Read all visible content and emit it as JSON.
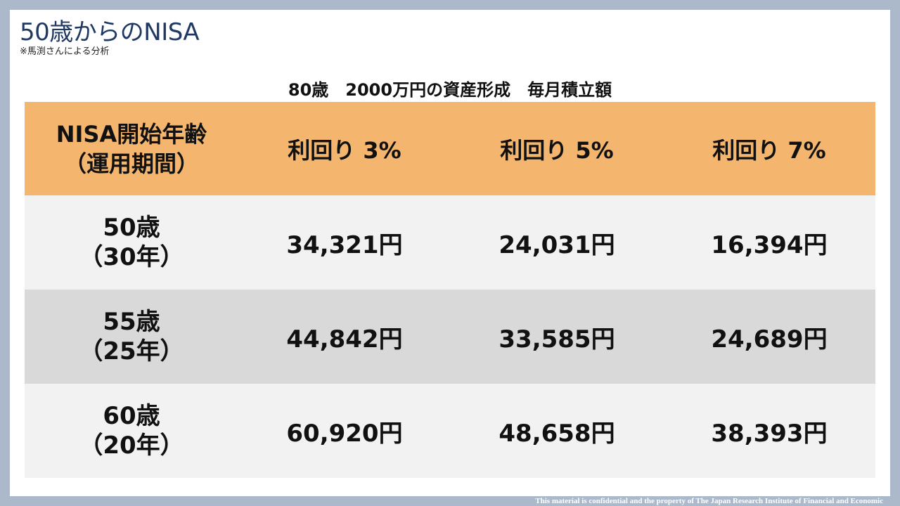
{
  "slide": {
    "title": "50歳からのNISA",
    "note": "※馬渕さんによる分析"
  },
  "table": {
    "caption": "80歳　2000万円の資産形成　毎月積立額",
    "header": {
      "age_line1": "NISA開始年齢",
      "age_line2": "（運用期間）",
      "columns": [
        "利回り 3%",
        "利回り 5%",
        "利回り 7%"
      ]
    },
    "rows": [
      {
        "age": "50歳",
        "period": "（30年）",
        "values": [
          "34,321円",
          "24,031円",
          "16,394円"
        ]
      },
      {
        "age": "55歳",
        "period": "（25年）",
        "values": [
          "44,842円",
          "33,585円",
          "24,689円"
        ]
      },
      {
        "age": "60歳",
        "period": "（20年）",
        "values": [
          "60,920円",
          "48,658円",
          "38,393円"
        ]
      }
    ]
  },
  "footer": {
    "text": "This material is confidential and the property of The Japan Research Institute of Financial and Economic"
  },
  "colors": {
    "background": "#acb9ca",
    "title": "#1f3864",
    "header_fill": "#f4b66f",
    "row_light": "#f2f2f2",
    "row_dark": "#d9d9d9"
  }
}
